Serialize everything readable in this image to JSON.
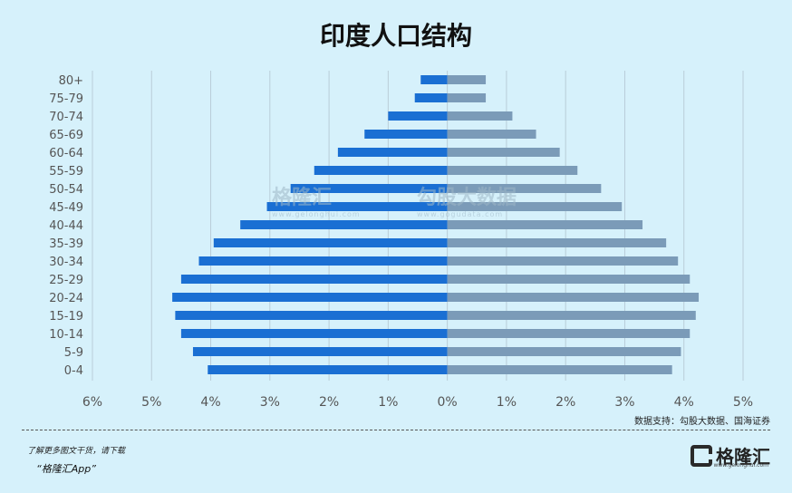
{
  "title": "印度人口结构",
  "chart_data": {
    "type": "bar",
    "orientation": "horizontal",
    "title": "印度人口结构",
    "categories": [
      "80+",
      "75-79",
      "70-74",
      "65-69",
      "60-64",
      "55-59",
      "50-54",
      "45-49",
      "40-44",
      "35-39",
      "30-34",
      "25-29",
      "20-24",
      "15-19",
      "10-14",
      "5-9",
      "0-4"
    ],
    "series": [
      {
        "values": [
          0.45,
          0.55,
          1.0,
          1.4,
          1.85,
          2.25,
          2.65,
          3.05,
          3.5,
          3.95,
          4.2,
          4.5,
          4.65,
          4.6,
          4.5,
          4.3,
          4.05
        ],
        "color": "#1a6fd3"
      },
      {
        "values": [
          0.65,
          0.65,
          1.1,
          1.5,
          1.9,
          2.2,
          2.6,
          2.95,
          3.3,
          3.7,
          3.9,
          4.1,
          4.25,
          4.2,
          4.1,
          3.95,
          3.8
        ],
        "color": "#7b9bb8"
      }
    ],
    "xlim": [
      -6,
      5
    ],
    "xticks": [
      "6%",
      "5%",
      "4%",
      "3%",
      "2%",
      "1%",
      "0%",
      "1%",
      "2%",
      "3%",
      "4%",
      "5%"
    ],
    "grid": true
  },
  "watermark": {
    "brand": "格隆汇",
    "brand_url": "www.gelonghui.com",
    "brand2": "勾股大数据",
    "brand2_url": "www.gogudata.com"
  },
  "source": "数据支持：勾股大数据、国海证券",
  "footer": {
    "note": "了解更多图文干货，请下载",
    "app": "“格隆汇App”"
  },
  "logo": {
    "text": "格隆汇",
    "sub": "www.gelonghui.com"
  }
}
